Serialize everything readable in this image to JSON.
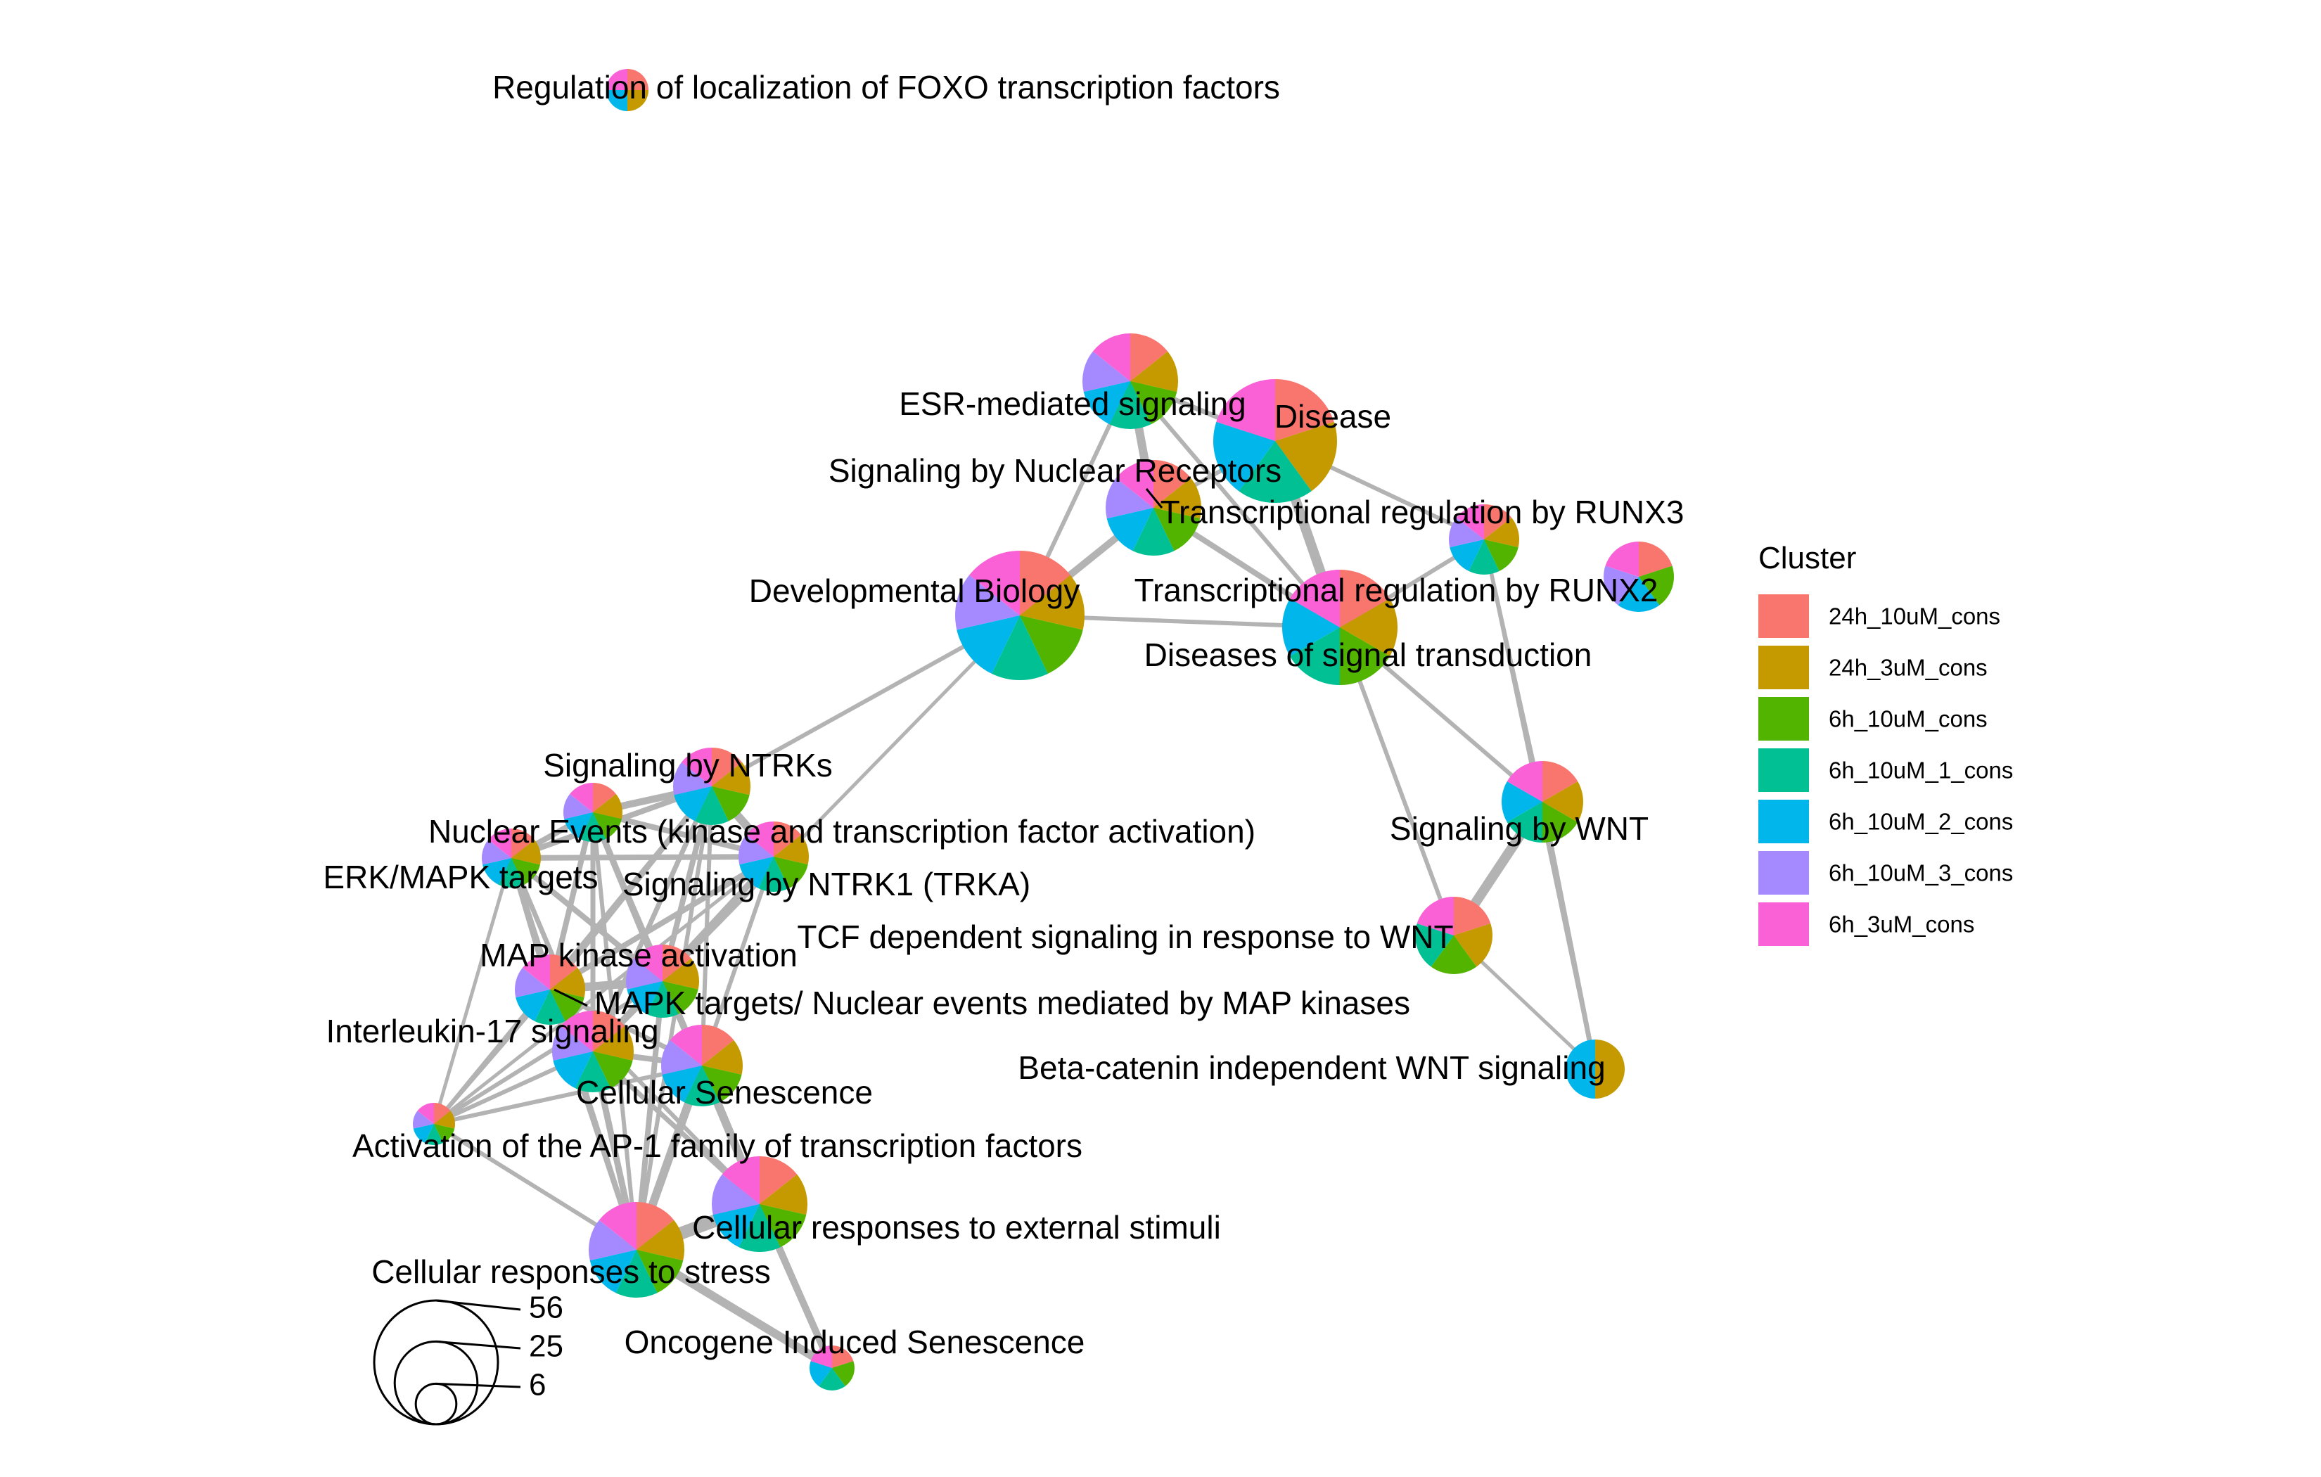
{
  "clusters": [
    {
      "name": "24h_10uM_cons",
      "color": "#F8766D"
    },
    {
      "name": "24h_3uM_cons",
      "color": "#C49A00"
    },
    {
      "name": "6h_10uM_cons",
      "color": "#53B400"
    },
    {
      "name": "6h_10uM_1_cons",
      "color": "#00C094"
    },
    {
      "name": "6h_10uM_2_cons",
      "color": "#00B6EB"
    },
    {
      "name": "6h_10uM_3_cons",
      "color": "#A58AFF"
    },
    {
      "name": "6h_3uM_cons",
      "color": "#FB61D7"
    }
  ],
  "legend": {
    "title": "Cluster"
  },
  "size_legend": {
    "values": [
      56,
      25,
      6
    ]
  },
  "nodes": [
    {
      "id": "foxo",
      "label": "Regulation of localization of FOXO transcription factors",
      "clusters": [
        0,
        1,
        4,
        6
      ]
    },
    {
      "id": "esr",
      "label": "ESR-mediated signaling",
      "clusters": [
        0,
        1,
        2,
        3,
        4,
        5,
        6
      ]
    },
    {
      "id": "disease",
      "label": "Disease",
      "clusters": [
        0,
        1,
        3,
        4,
        6
      ]
    },
    {
      "id": "snr",
      "label": "Signaling by Nuclear Receptors",
      "clusters": [
        0,
        1,
        2,
        3,
        4,
        5,
        6
      ]
    },
    {
      "id": "runx3",
      "label": "Transcriptional regulation by RUNX3",
      "clusters": [
        0,
        1,
        2,
        3,
        4,
        5,
        6
      ]
    },
    {
      "id": "unlabeled_right",
      "label": "",
      "clusters": [
        0,
        2,
        4,
        5,
        6
      ]
    },
    {
      "id": "devbio",
      "label": "Developmental Biology",
      "clusters": [
        0,
        1,
        2,
        3,
        4,
        5,
        6
      ]
    },
    {
      "id": "runx2",
      "label": "Transcriptional regulation by RUNX2",
      "clusters": [
        0,
        1,
        2,
        3,
        4,
        6
      ]
    },
    {
      "id": "dst",
      "label": "Diseases of signal transduction",
      "clusters": []
    },
    {
      "id": "ntrks",
      "label": "Signaling by NTRKs",
      "clusters": [
        0,
        1,
        2,
        3,
        4,
        5,
        6
      ]
    },
    {
      "id": "nuclear_events",
      "label": "Nuclear Events (kinase and transcription factor activation)",
      "clusters": [
        0,
        1,
        2,
        3,
        4,
        5,
        6
      ]
    },
    {
      "id": "erk",
      "label": "ERK/MAPK targets",
      "clusters": [
        0,
        1,
        2,
        3,
        4,
        5,
        6
      ]
    },
    {
      "id": "ntrk1",
      "label": "Signaling by NTRK1 (TRKA)",
      "clusters": [
        0,
        1,
        2,
        3,
        4,
        5,
        6
      ]
    },
    {
      "id": "wnt",
      "label": "Signaling by WNT",
      "clusters": [
        0,
        1,
        2,
        3,
        4,
        6
      ]
    },
    {
      "id": "tcf",
      "label": "TCF dependent signaling in response to WNT",
      "clusters": [
        0,
        1,
        2,
        3,
        6
      ]
    },
    {
      "id": "mapk_act",
      "label": "MAP kinase activation",
      "clusters": [
        0,
        1,
        2,
        3,
        4,
        5,
        6
      ]
    },
    {
      "id": "mapk_targets",
      "label": "MAPK targets/ Nuclear events mediated by MAP kinases",
      "clusters": [
        0,
        1,
        2,
        3,
        4,
        5,
        6
      ]
    },
    {
      "id": "il17",
      "label": "Interleukin-17 signaling",
      "clusters": [
        0,
        1,
        2,
        3,
        4,
        5,
        6
      ]
    },
    {
      "id": "senescence",
      "label": "Cellular Senescence",
      "clusters": [
        0,
        1,
        2,
        3,
        4,
        5,
        6
      ]
    },
    {
      "id": "bcat",
      "label": "Beta-catenin independent WNT signaling",
      "clusters": [
        1,
        4
      ]
    },
    {
      "id": "ap1",
      "label": "Activation of the AP-1 family of transcription factors",
      "clusters": [
        0,
        1,
        2,
        3,
        4,
        5,
        6
      ]
    },
    {
      "id": "ext_stim",
      "label": "Cellular responses to external stimuli",
      "clusters": [
        0,
        1,
        2,
        3,
        4,
        5,
        6
      ]
    },
    {
      "id": "stress",
      "label": "Cellular responses to stress",
      "clusters": [
        0,
        1,
        2,
        3,
        4,
        5,
        6
      ]
    },
    {
      "id": "oncogene",
      "label": "Oncogene Induced Senescence",
      "clusters": [
        0,
        2,
        3,
        4,
        6
      ]
    }
  ]
}
